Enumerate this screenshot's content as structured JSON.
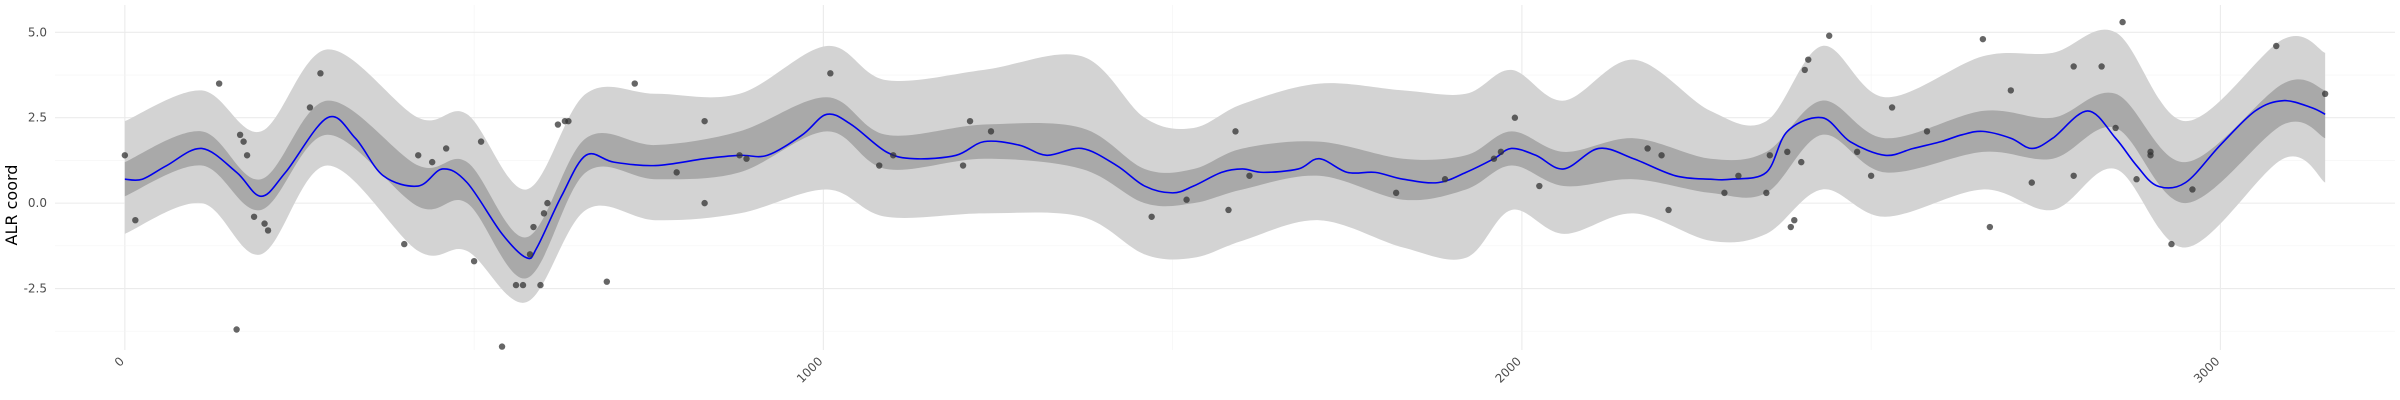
{
  "chart_data": {
    "type": "line",
    "title": "",
    "xlabel": "",
    "ylabel": "ALR coord",
    "xlim": [
      -100,
      3250
    ],
    "ylim": [
      -4.3,
      5.8
    ],
    "x_ticks": [
      0,
      1000,
      2000,
      3000
    ],
    "x_tick_labels": [
      "0",
      "1000",
      "2000",
      "3000"
    ],
    "y_ticks": [
      -2.5,
      0.0,
      2.5,
      5.0
    ],
    "y_tick_labels": [
      "-2.5",
      "0.0",
      "2.5",
      "5.0"
    ],
    "grid": true,
    "legend": "none",
    "colors": {
      "line": "#0000ee",
      "inner_band": "#a9a9a9",
      "outer_band": "#d3d3d3",
      "points": "#333333"
    },
    "mean_line": {
      "x": [
        0,
        25,
        60,
        110,
        160,
        195,
        230,
        290,
        330,
        370,
        420,
        455,
        490,
        540,
        575,
        590,
        625,
        660,
        700,
        760,
        830,
        880,
        920,
        970,
        1005,
        1040,
        1090,
        1130,
        1190,
        1230,
        1280,
        1320,
        1370,
        1420,
        1460,
        1500,
        1530,
        1570,
        1600,
        1630,
        1680,
        1710,
        1750,
        1790,
        1830,
        1880,
        1920,
        1960,
        1985,
        2020,
        2060,
        2110,
        2160,
        2220,
        2270,
        2300,
        2350,
        2380,
        2430,
        2470,
        2520,
        2560,
        2600,
        2630,
        2660,
        2700,
        2730,
        2760,
        2810,
        2850,
        2880,
        2910,
        2950,
        3000,
        3050,
        3090,
        3130,
        3150
      ],
      "y": [
        0.7,
        0.7,
        1.1,
        1.6,
        0.9,
        0.2,
        0.9,
        2.5,
        1.9,
        0.8,
        0.5,
        1.0,
        0.6,
        -0.9,
        -1.6,
        -1.3,
        0.2,
        1.4,
        1.2,
        1.1,
        1.3,
        1.4,
        1.4,
        2.0,
        2.6,
        2.3,
        1.5,
        1.3,
        1.4,
        1.8,
        1.7,
        1.4,
        1.6,
        1.1,
        0.5,
        0.3,
        0.5,
        0.9,
        1.0,
        0.9,
        1.0,
        1.3,
        0.9,
        0.9,
        0.7,
        0.6,
        0.9,
        1.3,
        1.6,
        1.4,
        1.0,
        1.6,
        1.3,
        0.8,
        0.7,
        0.7,
        0.9,
        2.1,
        2.5,
        1.8,
        1.4,
        1.6,
        1.8,
        2.0,
        2.1,
        1.9,
        1.6,
        1.9,
        2.7,
        1.9,
        1.1,
        0.5,
        0.6,
        1.7,
        2.7,
        3.0,
        2.8,
        2.6
      ]
    },
    "inner_band": {
      "x": [
        0,
        110,
        195,
        290,
        420,
        490,
        575,
        660,
        760,
        880,
        1005,
        1090,
        1230,
        1370,
        1460,
        1530,
        1600,
        1710,
        1830,
        1920,
        1985,
        2060,
        2160,
        2270,
        2350,
        2430,
        2520,
        2660,
        2760,
        2850,
        2950,
        3090,
        3150
      ],
      "lower": [
        0.2,
        1.1,
        -0.2,
        2.0,
        -0.1,
        0.0,
        -2.2,
        0.9,
        0.7,
        0.9,
        2.1,
        1.0,
        1.3,
        1.0,
        0.0,
        0.0,
        0.4,
        0.8,
        0.1,
        0.4,
        1.1,
        0.5,
        0.7,
        0.3,
        0.3,
        2.0,
        0.9,
        1.5,
        1.3,
        2.2,
        0.0,
        2.3,
        1.9
      ],
      "upper": [
        1.2,
        2.1,
        0.7,
        3.0,
        1.1,
        1.2,
        -1.0,
        1.9,
        1.7,
        2.1,
        3.1,
        2.0,
        2.3,
        2.2,
        1.0,
        1.0,
        1.6,
        1.8,
        1.3,
        1.4,
        2.1,
        1.5,
        1.9,
        1.3,
        1.5,
        3.0,
        1.9,
        2.7,
        2.5,
        3.2,
        1.2,
        3.5,
        3.3
      ]
    },
    "outer_band": {
      "x": [
        0,
        110,
        195,
        290,
        420,
        490,
        575,
        660,
        760,
        880,
        1005,
        1090,
        1230,
        1370,
        1460,
        1530,
        1600,
        1710,
        1830,
        1920,
        1985,
        2060,
        2160,
        2270,
        2350,
        2430,
        2520,
        2660,
        2760,
        2850,
        2950,
        3090,
        3150
      ],
      "lower": [
        -0.9,
        0.0,
        -1.5,
        1.1,
        -1.4,
        -1.4,
        -2.9,
        -0.2,
        -0.5,
        -0.3,
        0.4,
        -0.4,
        -0.3,
        -0.4,
        -1.5,
        -1.6,
        -1.1,
        -0.5,
        -1.3,
        -1.6,
        -0.2,
        -0.9,
        -0.3,
        -1.1,
        -0.9,
        0.4,
        -0.4,
        0.4,
        -0.2,
        1.0,
        -1.3,
        1.3,
        0.6
      ],
      "upper": [
        2.4,
        3.3,
        2.1,
        4.5,
        2.5,
        2.6,
        0.4,
        3.2,
        3.2,
        3.2,
        4.6,
        3.6,
        3.9,
        4.3,
        2.5,
        2.2,
        2.9,
        3.5,
        3.3,
        3.2,
        3.9,
        3.0,
        4.2,
        2.7,
        2.4,
        4.6,
        3.1,
        4.3,
        4.4,
        5.0,
        2.4,
        4.8,
        4.4
      ]
    },
    "points": {
      "x": [
        0,
        15,
        135,
        160,
        165,
        170,
        175,
        185,
        200,
        205,
        265,
        280,
        400,
        420,
        440,
        460,
        500,
        510,
        540,
        560,
        570,
        580,
        585,
        595,
        600,
        605,
        620,
        630,
        635,
        690,
        730,
        790,
        830,
        830,
        880,
        890,
        1010,
        1080,
        1100,
        1200,
        1210,
        1240,
        1470,
        1520,
        1580,
        1590,
        1610,
        1820,
        1890,
        1960,
        1970,
        1990,
        2025,
        2180,
        2200,
        2210,
        2290,
        2310,
        2350,
        2355,
        2380,
        2385,
        2390,
        2400,
        2405,
        2410,
        2440,
        2480,
        2500,
        2530,
        2580,
        2660,
        2670,
        2700,
        2730,
        2790,
        2790,
        2830,
        2850,
        2860,
        2880,
        2900,
        2900,
        2930,
        2960,
        3080,
        3150
      ],
      "y": [
        1.4,
        -0.5,
        3.5,
        -3.7,
        2.0,
        1.8,
        1.4,
        -0.4,
        -0.6,
        -0.8,
        2.8,
        3.8,
        -1.2,
        1.4,
        1.2,
        1.6,
        -1.7,
        1.8,
        -4.2,
        -2.4,
        -2.4,
        -1.5,
        -0.7,
        -2.4,
        -0.3,
        0.0,
        2.3,
        2.4,
        2.4,
        -2.3,
        3.5,
        0.9,
        0.0,
        2.4,
        1.4,
        1.3,
        3.8,
        1.1,
        1.4,
        1.1,
        2.4,
        2.1,
        -0.4,
        0.1,
        -0.2,
        2.1,
        0.8,
        0.3,
        0.7,
        1.3,
        1.5,
        2.5,
        0.5,
        1.6,
        1.4,
        -0.2,
        0.3,
        0.8,
        0.3,
        1.4,
        1.5,
        -0.7,
        -0.5,
        1.2,
        3.9,
        4.2,
        4.9,
        1.5,
        0.8,
        2.8,
        2.1,
        4.8,
        -0.7,
        3.3,
        0.6,
        0.8,
        4.0,
        4.0,
        2.2,
        5.3,
        0.7,
        1.4,
        1.5,
        -1.2,
        0.4,
        4.6,
        3.2
      ]
    }
  }
}
